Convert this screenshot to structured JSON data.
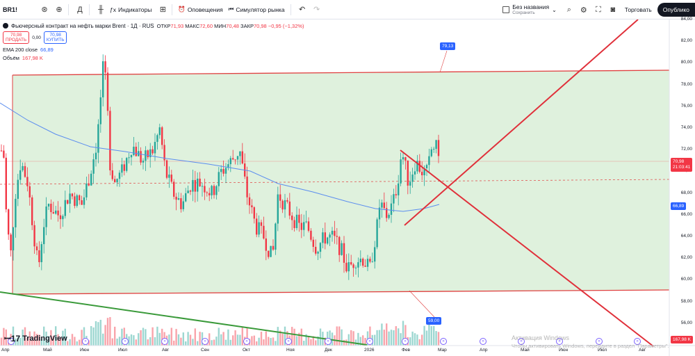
{
  "toolbar": {
    "symbol": "BR1!",
    "interval": "Д",
    "indicators_label": "Индикаторы",
    "alerts_label": "Оповещения",
    "replay_label": "Симулятор рынка",
    "layout_title": "Без названия",
    "layout_subtitle": "Сохранить",
    "trade_label": "Торговать",
    "publish_label": "Опублико"
  },
  "legend": {
    "title": "Фьючерсный контракт на нефть марки Brent · 1Д · RUS",
    "open_label": "ОТКР",
    "open_value": "71,93",
    "high_label": "МАКС",
    "high_value": "72,60",
    "low_label": "МИН",
    "low_value": "70,48",
    "close_label": "ЗАКР",
    "close_value": "70,98",
    "change": "−0,95 (−1,32%)",
    "sell_price": "70,98",
    "sell_label": "ПРОДАТЬ",
    "spread": "0,00",
    "buy_price": "70,98",
    "buy_label": "КУПИТЬ",
    "ema_label": "EMA 200 close",
    "ema_value": "66,89",
    "volume_label": "Объём",
    "volume_value": "167,98 K"
  },
  "price_axis": [
    "84,00",
    "82,00",
    "80,00",
    "78,00",
    "76,00",
    "74,00",
    "72,00",
    "70,00",
    "68,00",
    "66,00",
    "64,00",
    "62,00",
    "60,00",
    "58,00",
    "56,00"
  ],
  "badges": {
    "current_price": "70,98",
    "countdown": "21:03:41",
    "ema": "66,89",
    "volume": "167,98 K",
    "upper_level": "79,13",
    "lower_level": "59,00"
  },
  "time_axis": [
    "Апр",
    "Май",
    "Июн",
    "Июл",
    "Авг",
    "Сен",
    "Окт",
    "Ноя",
    "Дек",
    "2026",
    "Фев",
    "Мар",
    "Апр",
    "Май",
    "Июн",
    "Июл",
    "Авг"
  ],
  "branding": "TradingView",
  "windows_watermark": {
    "line1": "Активация Windows",
    "line2": "Чтобы активировать Windows, перейдите в раздел \"Параметры\"."
  },
  "colors": {
    "up": "#26a69a",
    "down": "#f23645",
    "ema": "#5b8def",
    "channel_fill": "#d9efd7",
    "channel_line": "#e04040",
    "trend_green": "#3a9a3a",
    "accent_blue": "#2962ff"
  },
  "icons": [
    "search-icon",
    "plus-icon",
    "candles-icon",
    "indicators-icon",
    "templates-icon",
    "alert-icon",
    "replay-icon",
    "undo-icon",
    "redo-icon",
    "settings-icon",
    "fullscreen-icon",
    "camera-icon"
  ]
}
